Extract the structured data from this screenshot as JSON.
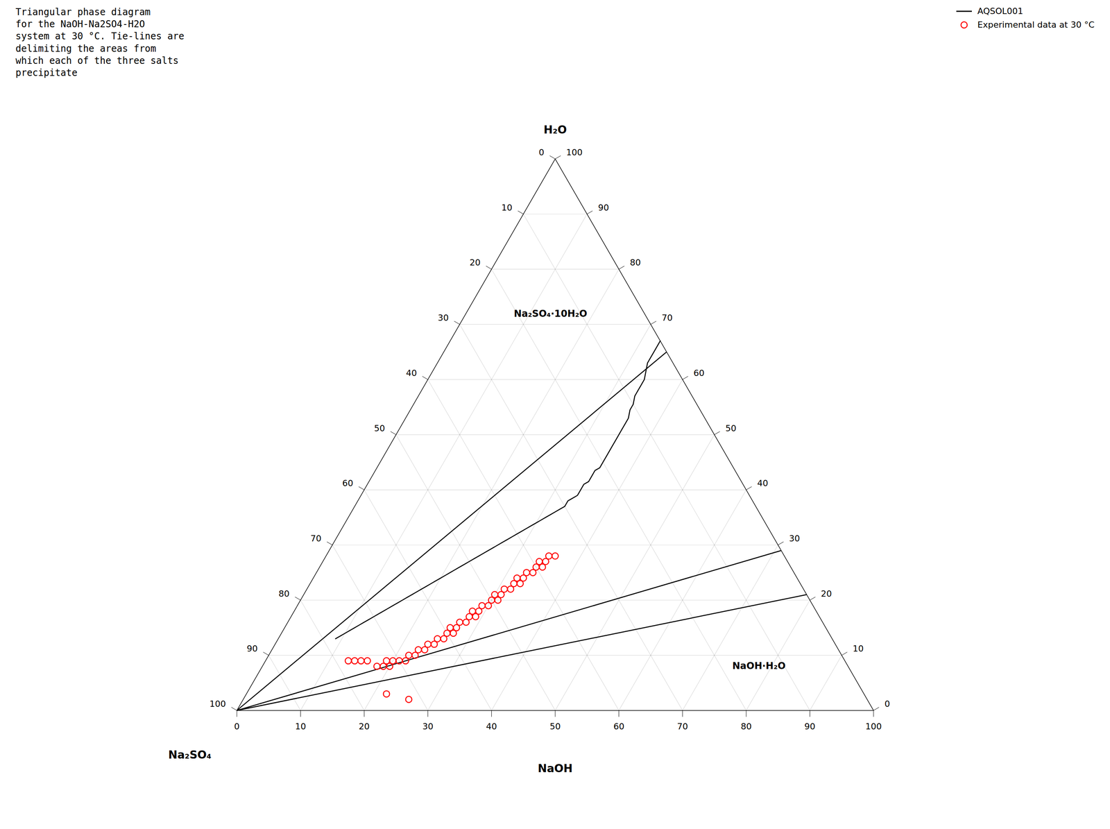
{
  "chart_data": {
    "type": "ternary",
    "title": "Triangular phase diagram\nfor the NaOH-Na2SO4-H2O\nsystem at 30 °C. Tie-lines are\ndelimiting the areas from\nwhich each of the three salts\nprecipitate",
    "axes": [
      {
        "label": "Na₂SO₄",
        "lim": [
          0,
          100
        ],
        "ticks": [
          0,
          10,
          20,
          30,
          40,
          50,
          60,
          70,
          80,
          90,
          100
        ]
      },
      {
        "label": "NaOH",
        "lim": [
          0,
          100
        ],
        "ticks": [
          0,
          10,
          20,
          30,
          40,
          50,
          60,
          70,
          80,
          90,
          100
        ]
      },
      {
        "label": "H₂O",
        "lim": [
          0,
          100
        ],
        "ticks": [
          0,
          10,
          20,
          30,
          40,
          50,
          60,
          70,
          80,
          90,
          100
        ]
      }
    ],
    "grid": true,
    "legend": "upper right",
    "series": [
      {
        "name": "AQSOL001",
        "type": "line",
        "color": "#000000",
        "values": [
          [
            0,
            33,
            67
          ],
          [
            1,
            33,
            66
          ],
          [
            2,
            33,
            65
          ],
          [
            3,
            33,
            64
          ],
          [
            4,
            33,
            63
          ],
          [
            5,
            33.5,
            61.5
          ],
          [
            6,
            34,
            60
          ],
          [
            7,
            34,
            59
          ],
          [
            8,
            34,
            58
          ],
          [
            9,
            34,
            57
          ],
          [
            10,
            34.5,
            55.5
          ],
          [
            11,
            34.5,
            54.5
          ],
          [
            12,
            35,
            53
          ],
          [
            13,
            35,
            52
          ],
          [
            14,
            35,
            51
          ],
          [
            15,
            35,
            50
          ],
          [
            16,
            35,
            49
          ],
          [
            17,
            35,
            48
          ],
          [
            18,
            35,
            47
          ],
          [
            19,
            35,
            46
          ],
          [
            20,
            35,
            45
          ],
          [
            21,
            35,
            44
          ],
          [
            22,
            34.5,
            43.5
          ],
          [
            23,
            34.5,
            42.5
          ],
          [
            24,
            34.5,
            41.5
          ],
          [
            25,
            34,
            41
          ],
          [
            26,
            34,
            40
          ],
          [
            27,
            34,
            39
          ],
          [
            28,
            33.5,
            38.5
          ],
          [
            29,
            33,
            38
          ],
          [
            30,
            33,
            37
          ],
          [
            31,
            32.5,
            36.5
          ],
          [
            32,
            32,
            36
          ],
          [
            33,
            31.5,
            35.5
          ],
          [
            34,
            31,
            35
          ],
          [
            35,
            30.5,
            34.5
          ],
          [
            36,
            30,
            34
          ],
          [
            37,
            29.5,
            33.5
          ],
          [
            38,
            29,
            33
          ],
          [
            39,
            28.5,
            32.5
          ],
          [
            40,
            28,
            32
          ],
          [
            41,
            27.5,
            31.5
          ],
          [
            42,
            27,
            31
          ],
          [
            43,
            26.5,
            30.5
          ],
          [
            44,
            26,
            30
          ],
          [
            45,
            25.5,
            29.5
          ],
          [
            46,
            25,
            29
          ],
          [
            47,
            24.5,
            28.5
          ],
          [
            48,
            24,
            28
          ],
          [
            49,
            23.5,
            27.5
          ],
          [
            50,
            23,
            27
          ],
          [
            51,
            22.5,
            26.5
          ],
          [
            52,
            22,
            26
          ],
          [
            53,
            21.5,
            25.5
          ],
          [
            54,
            21,
            25
          ],
          [
            55,
            20.5,
            24.5
          ],
          [
            56,
            20,
            24
          ],
          [
            57,
            19.5,
            23.5
          ],
          [
            58,
            19,
            23
          ],
          [
            59,
            18.5,
            22.5
          ],
          [
            60,
            18,
            22
          ],
          [
            61,
            17.5,
            21.5
          ],
          [
            62,
            17,
            21
          ],
          [
            63,
            16.5,
            20.5
          ],
          [
            64,
            16,
            20
          ],
          [
            65,
            15.5,
            19.5
          ],
          [
            66,
            15,
            19
          ],
          [
            67,
            14.5,
            18.5
          ],
          [
            68,
            14,
            18
          ],
          [
            69,
            13.5,
            17.5
          ],
          [
            70,
            13,
            17
          ],
          [
            71,
            12.5,
            16.5
          ],
          [
            72,
            12,
            16
          ],
          [
            73,
            11.5,
            15.5
          ],
          [
            74,
            11,
            15
          ],
          [
            75,
            10.5,
            14.5
          ],
          [
            76,
            10,
            14
          ],
          [
            77,
            9.5,
            13.5
          ],
          [
            78,
            9,
            13
          ]
        ]
      },
      {
        "name": "Experimental data at 30 °C",
        "type": "scatter",
        "marker": "circle",
        "color": "#ff0000",
        "values": [
          [
            36,
            36,
            28
          ],
          [
            37,
            35,
            28
          ],
          [
            38,
            35,
            27
          ],
          [
            39,
            35,
            26
          ],
          [
            39,
            34,
            27
          ],
          [
            40,
            34,
            26
          ],
          [
            41,
            34,
            25
          ],
          [
            42,
            33,
            25
          ],
          [
            43,
            33,
            24
          ],
          [
            44,
            33,
            23
          ],
          [
            44,
            32,
            24
          ],
          [
            45,
            32,
            23
          ],
          [
            46,
            32,
            22
          ],
          [
            47,
            31,
            22
          ],
          [
            48,
            31,
            21
          ],
          [
            49,
            31,
            20
          ],
          [
            49,
            30,
            21
          ],
          [
            50,
            30,
            20
          ],
          [
            51,
            30,
            19
          ],
          [
            52,
            29,
            19
          ],
          [
            53,
            29,
            18
          ],
          [
            54,
            29,
            17
          ],
          [
            54,
            28,
            18
          ],
          [
            55,
            28,
            17
          ],
          [
            56,
            28,
            16
          ],
          [
            57,
            27,
            16
          ],
          [
            58,
            27,
            15
          ],
          [
            59,
            27,
            14
          ],
          [
            59,
            26,
            15
          ],
          [
            60,
            26,
            14
          ],
          [
            61,
            26,
            13
          ],
          [
            62,
            25,
            13
          ],
          [
            63,
            25,
            12
          ],
          [
            64,
            24,
            12
          ],
          [
            65,
            24,
            11
          ],
          [
            66,
            23,
            11
          ],
          [
            67,
            23,
            10
          ],
          [
            68,
            22,
            10
          ],
          [
            69,
            22,
            9
          ],
          [
            70,
            21,
            9
          ],
          [
            71,
            20,
            9
          ],
          [
            72,
            20,
            8
          ],
          [
            73,
            19,
            8
          ],
          [
            74,
            18,
            8
          ],
          [
            72,
            19,
            9
          ],
          [
            75,
            16,
            9
          ],
          [
            76,
            15,
            9
          ],
          [
            77,
            14,
            9
          ],
          [
            72,
            26,
            2
          ],
          [
            75,
            22,
            3
          ],
          [
            78,
            13,
            9
          ]
        ]
      }
    ],
    "tie_lines": {
      "color": "#000000",
      "values": [
        [
          [
            100,
            0,
            0
          ],
          [
            0,
            35,
            65
          ]
        ],
        [
          [
            100,
            0,
            0
          ],
          [
            0,
            71,
            29
          ]
        ],
        [
          [
            100,
            0,
            0
          ],
          [
            0,
            79,
            21
          ]
        ]
      ]
    },
    "annotations": [
      "Na₂SO₄·10H₂O",
      "NaOH·H₂O"
    ]
  }
}
